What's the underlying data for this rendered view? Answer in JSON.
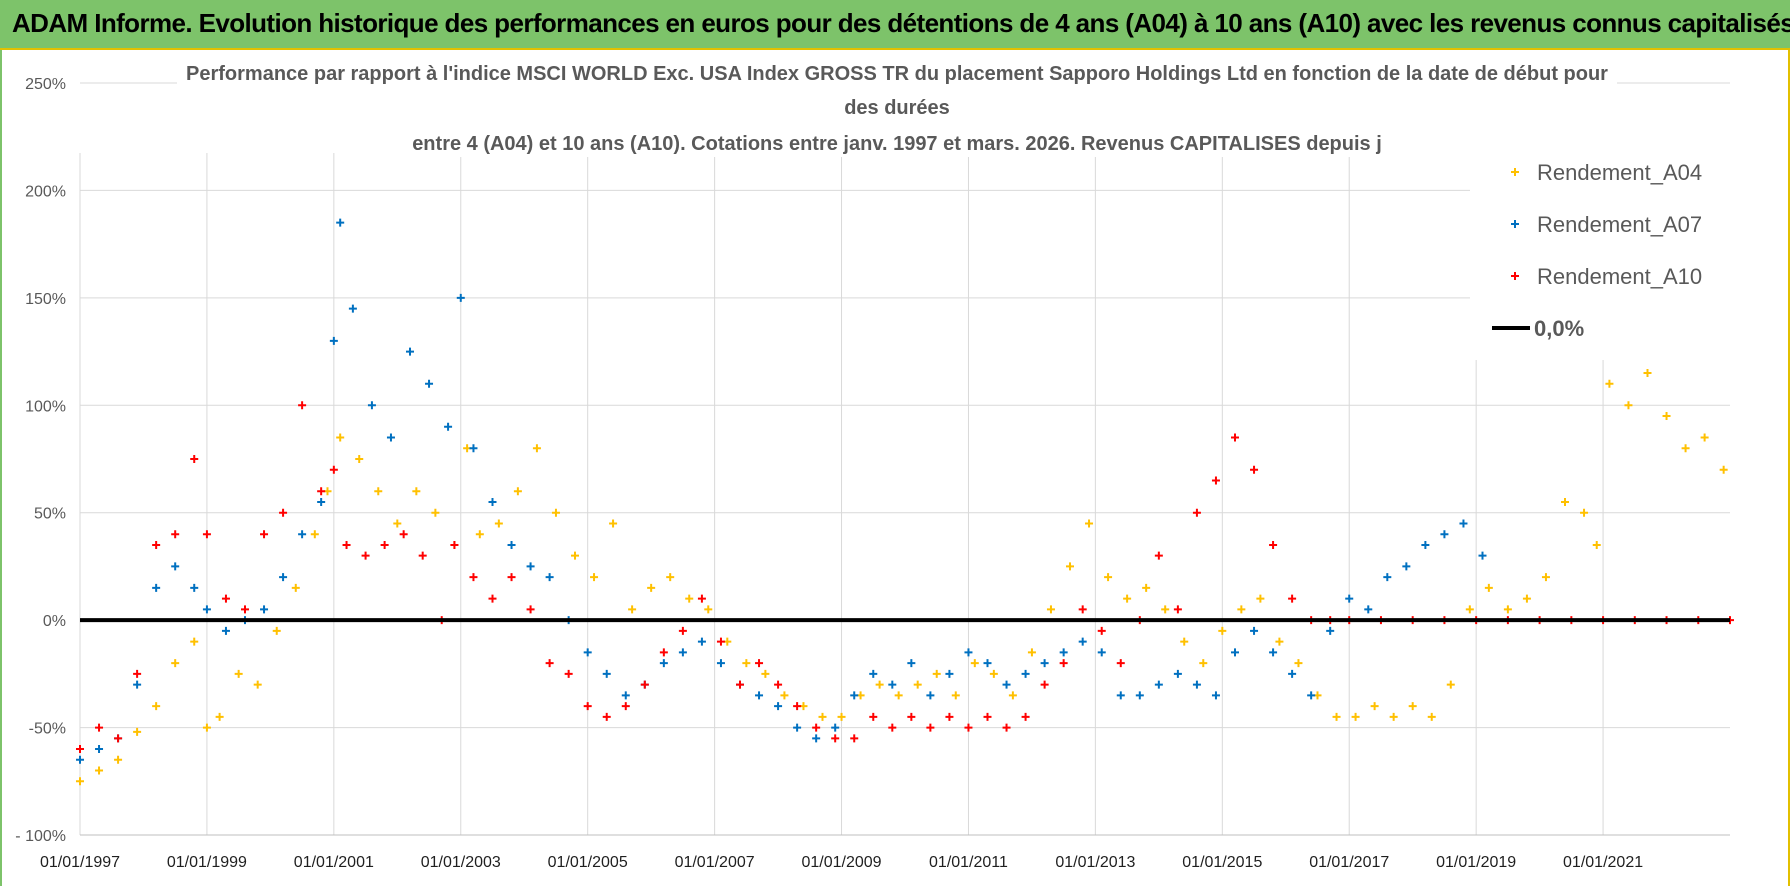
{
  "banner": {
    "title": "ADAM Informe. Evolution historique des performances en euros pour des détentions de 4 ans (A04) à 10 ans (A10) avec les revenus connus capitalisés"
  },
  "colors": {
    "banner_bg": "#7dc36a",
    "banner_border": "#e3c000",
    "A04": "#ffc000",
    "A07": "#0070c0",
    "A10": "#ff0000",
    "zero_line": "#000000",
    "grid": "#d9d9d9"
  },
  "chart_data": {
    "type": "scatter",
    "title_lines": [
      "Performance par rapport à l'indice MSCI WORLD Exc. USA Index GROSS TR  du placement Sapporo Holdings Ltd en fonction de la date de début pour",
      "des durées",
      "entre 4 (A04) et 10 ans (A10).  Cotations entre janv. 1997 et mars. 2026. Revenus CAPITALISES depuis j"
    ],
    "xlabel": "",
    "ylabel": "",
    "xlim": [
      1997.0,
      2023.0
    ],
    "ylim": [
      -100,
      250
    ],
    "y_ticks": [
      250,
      200,
      150,
      100,
      50,
      0,
      -50,
      -100
    ],
    "y_tick_labels": [
      "250%",
      "200%",
      "150%",
      "100%",
      "50%",
      "0%",
      "-50%",
      "- 100%"
    ],
    "x_ticks": [
      1997,
      1999,
      2001,
      2003,
      2005,
      2007,
      2009,
      2011,
      2013,
      2015,
      2017,
      2019,
      2021
    ],
    "x_tick_labels": [
      "01/01/1997",
      "01/01/1999",
      "01/01/2001",
      "01/01/2003",
      "01/01/2005",
      "01/01/2007",
      "01/01/2009",
      "01/01/2011",
      "01/01/2013",
      "01/01/2015",
      "01/01/2017",
      "01/01/2019",
      "01/01/2021"
    ],
    "legend": {
      "position": "top-right",
      "entries": [
        {
          "label": "Rendement_A04",
          "marker": "+",
          "color": "#ffc000"
        },
        {
          "label": "Rendement_A07",
          "marker": "+",
          "color": "#0070c0"
        },
        {
          "label": "Rendement_A10",
          "marker": "+",
          "color": "#ff0000"
        },
        {
          "label": "0,0%",
          "marker": "line",
          "color": "#000000"
        }
      ]
    },
    "series": [
      {
        "name": "Rendement_A04",
        "color": "#ffc000",
        "points": [
          [
            1997.0,
            -75
          ],
          [
            1997.3,
            -70
          ],
          [
            1997.6,
            -65
          ],
          [
            1997.9,
            -52
          ],
          [
            1998.2,
            -40
          ],
          [
            1998.5,
            -20
          ],
          [
            1998.8,
            -10
          ],
          [
            1999.0,
            -50
          ],
          [
            1999.2,
            -45
          ],
          [
            1999.5,
            -25
          ],
          [
            1999.8,
            -30
          ],
          [
            2000.1,
            -5
          ],
          [
            2000.4,
            15
          ],
          [
            2000.7,
            40
          ],
          [
            2000.9,
            60
          ],
          [
            2001.1,
            85
          ],
          [
            2001.4,
            75
          ],
          [
            2001.7,
            60
          ],
          [
            2002.0,
            45
          ],
          [
            2002.3,
            60
          ],
          [
            2002.6,
            50
          ],
          [
            2002.9,
            35
          ],
          [
            2003.1,
            80
          ],
          [
            2003.3,
            40
          ],
          [
            2003.6,
            45
          ],
          [
            2003.9,
            60
          ],
          [
            2004.2,
            80
          ],
          [
            2004.5,
            50
          ],
          [
            2004.8,
            30
          ],
          [
            2005.1,
            20
          ],
          [
            2005.4,
            45
          ],
          [
            2005.7,
            5
          ],
          [
            2006.0,
            15
          ],
          [
            2006.3,
            20
          ],
          [
            2006.6,
            10
          ],
          [
            2006.9,
            5
          ],
          [
            2007.2,
            -10
          ],
          [
            2007.5,
            -20
          ],
          [
            2007.8,
            -25
          ],
          [
            2008.1,
            -35
          ],
          [
            2008.4,
            -40
          ],
          [
            2008.7,
            -45
          ],
          [
            2009.0,
            -45
          ],
          [
            2009.3,
            -35
          ],
          [
            2009.6,
            -30
          ],
          [
            2009.9,
            -35
          ],
          [
            2010.2,
            -30
          ],
          [
            2010.5,
            -25
          ],
          [
            2010.8,
            -35
          ],
          [
            2011.1,
            -20
          ],
          [
            2011.4,
            -25
          ],
          [
            2011.7,
            -35
          ],
          [
            2012.0,
            -15
          ],
          [
            2012.3,
            5
          ],
          [
            2012.6,
            25
          ],
          [
            2012.9,
            45
          ],
          [
            2013.2,
            20
          ],
          [
            2013.5,
            10
          ],
          [
            2013.8,
            15
          ],
          [
            2014.1,
            5
          ],
          [
            2014.4,
            -10
          ],
          [
            2014.7,
            -20
          ],
          [
            2015.0,
            -5
          ],
          [
            2015.3,
            5
          ],
          [
            2015.6,
            10
          ],
          [
            2015.9,
            -10
          ],
          [
            2016.2,
            -20
          ],
          [
            2016.5,
            -35
          ],
          [
            2016.8,
            -45
          ],
          [
            2017.1,
            -45
          ],
          [
            2017.4,
            -40
          ],
          [
            2017.7,
            -45
          ],
          [
            2018.0,
            -40
          ],
          [
            2018.3,
            -45
          ],
          [
            2018.6,
            -30
          ],
          [
            2018.9,
            5
          ],
          [
            2019.2,
            15
          ],
          [
            2019.5,
            5
          ],
          [
            2019.8,
            10
          ],
          [
            2020.1,
            20
          ],
          [
            2020.4,
            55
          ],
          [
            2020.7,
            50
          ],
          [
            2020.9,
            35
          ],
          [
            2021.1,
            110
          ],
          [
            2021.4,
            100
          ],
          [
            2021.7,
            115
          ],
          [
            2022.0,
            95
          ],
          [
            2022.3,
            80
          ],
          [
            2022.6,
            85
          ],
          [
            2022.9,
            70
          ]
        ]
      },
      {
        "name": "Rendement_A07",
        "color": "#0070c0",
        "points": [
          [
            1997.0,
            -65
          ],
          [
            1997.3,
            -60
          ],
          [
            1997.6,
            -55
          ],
          [
            1997.9,
            -30
          ],
          [
            1998.2,
            15
          ],
          [
            1998.5,
            25
          ],
          [
            1998.8,
            15
          ],
          [
            1999.0,
            5
          ],
          [
            1999.3,
            -5
          ],
          [
            1999.6,
            0
          ],
          [
            1999.9,
            5
          ],
          [
            2000.2,
            20
          ],
          [
            2000.5,
            40
          ],
          [
            2000.8,
            55
          ],
          [
            2001.0,
            130
          ],
          [
            2001.1,
            185
          ],
          [
            2001.3,
            145
          ],
          [
            2001.6,
            100
          ],
          [
            2001.9,
            85
          ],
          [
            2002.2,
            125
          ],
          [
            2002.5,
            110
          ],
          [
            2002.8,
            90
          ],
          [
            2003.0,
            150
          ],
          [
            2003.2,
            80
          ],
          [
            2003.5,
            55
          ],
          [
            2003.8,
            35
          ],
          [
            2004.1,
            25
          ],
          [
            2004.4,
            20
          ],
          [
            2004.7,
            0
          ],
          [
            2005.0,
            -15
          ],
          [
            2005.3,
            -25
          ],
          [
            2005.6,
            -35
          ],
          [
            2005.9,
            -30
          ],
          [
            2006.2,
            -20
          ],
          [
            2006.5,
            -15
          ],
          [
            2006.8,
            -10
          ],
          [
            2007.1,
            -20
          ],
          [
            2007.4,
            -30
          ],
          [
            2007.7,
            -35
          ],
          [
            2008.0,
            -40
          ],
          [
            2008.3,
            -50
          ],
          [
            2008.6,
            -55
          ],
          [
            2008.9,
            -50
          ],
          [
            2009.2,
            -35
          ],
          [
            2009.5,
            -25
          ],
          [
            2009.8,
            -30
          ],
          [
            2010.1,
            -20
          ],
          [
            2010.4,
            -35
          ],
          [
            2010.7,
            -25
          ],
          [
            2011.0,
            -15
          ],
          [
            2011.3,
            -20
          ],
          [
            2011.6,
            -30
          ],
          [
            2011.9,
            -25
          ],
          [
            2012.2,
            -20
          ],
          [
            2012.5,
            -15
          ],
          [
            2012.8,
            -10
          ],
          [
            2013.1,
            -15
          ],
          [
            2013.4,
            -35
          ],
          [
            2013.7,
            -35
          ],
          [
            2014.0,
            -30
          ],
          [
            2014.3,
            -25
          ],
          [
            2014.6,
            -30
          ],
          [
            2014.9,
            -35
          ],
          [
            2015.2,
            -15
          ],
          [
            2015.5,
            -5
          ],
          [
            2015.8,
            -15
          ],
          [
            2016.1,
            -25
          ],
          [
            2016.4,
            -35
          ],
          [
            2016.7,
            -5
          ],
          [
            2017.0,
            10
          ],
          [
            2017.3,
            5
          ],
          [
            2017.6,
            20
          ],
          [
            2017.9,
            25
          ],
          [
            2018.2,
            35
          ],
          [
            2018.5,
            40
          ],
          [
            2018.8,
            45
          ],
          [
            2019.1,
            30
          ]
        ]
      },
      {
        "name": "Rendement_A10",
        "color": "#ff0000",
        "points": [
          [
            1997.0,
            -60
          ],
          [
            1997.3,
            -50
          ],
          [
            1997.6,
            -55
          ],
          [
            1997.9,
            -25
          ],
          [
            1998.2,
            35
          ],
          [
            1998.5,
            40
          ],
          [
            1998.8,
            75
          ],
          [
            1999.0,
            40
          ],
          [
            1999.3,
            10
          ],
          [
            1999.6,
            5
          ],
          [
            1999.9,
            40
          ],
          [
            2000.2,
            50
          ],
          [
            2000.5,
            100
          ],
          [
            2000.8,
            60
          ],
          [
            2001.0,
            70
          ],
          [
            2001.2,
            35
          ],
          [
            2001.5,
            30
          ],
          [
            2001.8,
            35
          ],
          [
            2002.1,
            40
          ],
          [
            2002.4,
            30
          ],
          [
            2002.7,
            0
          ],
          [
            2002.9,
            35
          ],
          [
            2003.2,
            20
          ],
          [
            2003.5,
            10
          ],
          [
            2003.8,
            20
          ],
          [
            2004.1,
            5
          ],
          [
            2004.4,
            -20
          ],
          [
            2004.7,
            -25
          ],
          [
            2005.0,
            -40
          ],
          [
            2005.3,
            -45
          ],
          [
            2005.6,
            -40
          ],
          [
            2005.9,
            -30
          ],
          [
            2006.2,
            -15
          ],
          [
            2006.5,
            -5
          ],
          [
            2006.8,
            10
          ],
          [
            2007.1,
            -10
          ],
          [
            2007.4,
            -30
          ],
          [
            2007.7,
            -20
          ],
          [
            2008.0,
            -30
          ],
          [
            2008.3,
            -40
          ],
          [
            2008.6,
            -50
          ],
          [
            2008.9,
            -55
          ],
          [
            2009.2,
            -55
          ],
          [
            2009.5,
            -45
          ],
          [
            2009.8,
            -50
          ],
          [
            2010.1,
            -45
          ],
          [
            2010.4,
            -50
          ],
          [
            2010.7,
            -45
          ],
          [
            2011.0,
            -50
          ],
          [
            2011.3,
            -45
          ],
          [
            2011.6,
            -50
          ],
          [
            2011.9,
            -45
          ],
          [
            2012.2,
            -30
          ],
          [
            2012.5,
            -20
          ],
          [
            2012.8,
            5
          ],
          [
            2013.1,
            -5
          ],
          [
            2013.4,
            -20
          ],
          [
            2013.7,
            0
          ],
          [
            2014.0,
            30
          ],
          [
            2014.3,
            5
          ],
          [
            2014.6,
            50
          ],
          [
            2014.9,
            65
          ],
          [
            2015.2,
            85
          ],
          [
            2015.5,
            70
          ],
          [
            2015.8,
            35
          ],
          [
            2016.1,
            10
          ],
          [
            2016.4,
            0
          ],
          [
            2016.7,
            0
          ],
          [
            2017.0,
            0
          ],
          [
            2017.5,
            0
          ],
          [
            2018.0,
            0
          ],
          [
            2018.5,
            0
          ],
          [
            2019.0,
            0
          ],
          [
            2019.5,
            0
          ],
          [
            2020.0,
            0
          ],
          [
            2020.5,
            0
          ],
          [
            2021.0,
            0
          ],
          [
            2021.5,
            0
          ],
          [
            2022.0,
            0
          ],
          [
            2022.5,
            0
          ],
          [
            2023.0,
            0
          ]
        ]
      }
    ],
    "reference_line": {
      "name": "0,0%",
      "y": 0,
      "color": "#000000"
    }
  }
}
